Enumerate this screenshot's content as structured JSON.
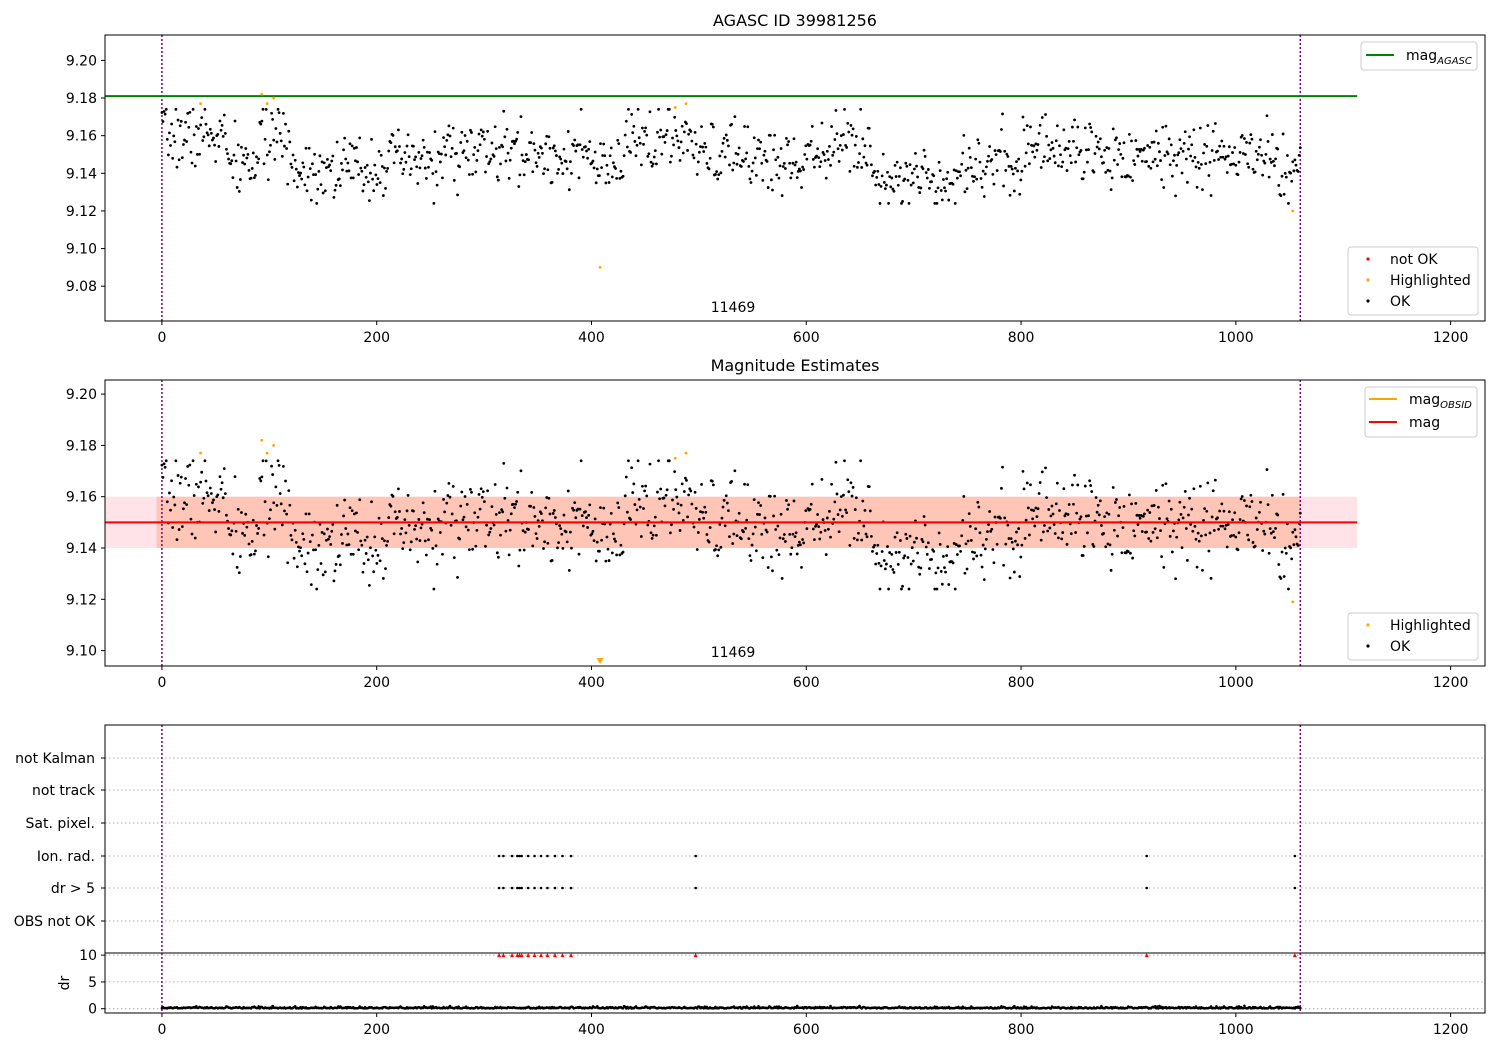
{
  "figure": {
    "width": 1500,
    "height": 1050,
    "x_ticks": [
      0,
      200,
      400,
      600,
      800,
      1000,
      1200
    ],
    "obsid_boundaries": [
      0,
      1060
    ],
    "obsid_label": "11469",
    "colors": {
      "ok": "#000000",
      "highlighted": "#ffa500",
      "not_ok": "#ff0000",
      "agasc_line": "#008000",
      "obsid_line": "#ffa500",
      "mag_line": "#ff0000",
      "band_outer": "#ffc0cb",
      "band_inner": "#ffa07a",
      "boundary": "#800080",
      "grid": "#b0b0b0"
    }
  },
  "chart_data": [
    {
      "type": "scatter",
      "title": "AGASC ID 39981256",
      "xlabel": "",
      "ylabel": "",
      "xlim": [
        -53,
        1232
      ],
      "ylim": [
        9.0615,
        9.2135
      ],
      "y_ticks": [
        "9.08",
        "9.10",
        "9.12",
        "9.14",
        "9.16",
        "9.18",
        "9.20"
      ],
      "reference_line": {
        "name": "mag_AGASC",
        "y": 9.181,
        "x_range": [
          -53,
          1113
        ]
      },
      "legend_lines": [
        {
          "label": "mag",
          "sub": "AGASC",
          "color": "#008000"
        }
      ],
      "legend_markers": [
        {
          "label": "not OK",
          "color": "#ff0000"
        },
        {
          "label": "Highlighted",
          "color": "#ffa500"
        },
        {
          "label": "OK",
          "color": "#000000"
        }
      ],
      "series": [
        {
          "name": "OK",
          "color": "#000000",
          "generated": {
            "n": 1060,
            "x_start": 0,
            "x_end": 1060,
            "seed": 7
          }
        },
        {
          "name": "Highlighted",
          "color": "#ffa500",
          "points": [
            [
              36,
              9.177
            ],
            [
              93,
              9.182
            ],
            [
              98,
              9.177
            ],
            [
              104,
              9.18
            ],
            [
              408,
              9.09
            ],
            [
              478,
              9.175
            ],
            [
              488,
              9.177
            ],
            [
              1053,
              9.12
            ]
          ]
        },
        {
          "name": "not OK",
          "color": "#ff0000",
          "points": []
        }
      ]
    },
    {
      "type": "scatter",
      "title": "Magnitude Estimates",
      "xlabel": "",
      "ylabel": "",
      "xlim": [
        -53,
        1232
      ],
      "ylim": [
        9.094,
        9.2055
      ],
      "y_ticks": [
        "9.10",
        "9.12",
        "9.14",
        "9.16",
        "9.18",
        "9.20"
      ],
      "mag": 9.15,
      "band": {
        "x_range": [
          -53,
          1113
        ],
        "outer": [
          9.14,
          9.16
        ],
        "inner": [
          9.14,
          9.16
        ]
      },
      "obsid_mag": {
        "y": 9.15,
        "x_range": [
          -5,
          1060
        ]
      },
      "legend_lines": [
        {
          "label": "mag",
          "sub": "OBSID",
          "color": "#ffa500"
        },
        {
          "label": "mag",
          "sub": "",
          "color": "#ff0000"
        }
      ],
      "legend_markers": [
        {
          "label": "Highlighted",
          "color": "#ffa500"
        },
        {
          "label": "OK",
          "color": "#000000"
        }
      ],
      "series": [
        {
          "name": "OK",
          "color": "#000000",
          "generated": {
            "n": 1060,
            "x_start": 0,
            "x_end": 1060,
            "seed": 7
          }
        },
        {
          "name": "Highlighted",
          "color": "#ffa500",
          "points": [
            [
              36,
              9.177
            ],
            [
              93,
              9.182
            ],
            [
              98,
              9.177
            ],
            [
              104,
              9.18
            ],
            [
              478,
              9.175
            ],
            [
              488,
              9.177
            ],
            [
              1053,
              9.119
            ]
          ]
        }
      ],
      "offscale_marker": {
        "x": 408,
        "color": "#ffa500"
      }
    },
    {
      "type": "scatter",
      "title": "",
      "xlabel": "",
      "ylabel": "",
      "xlim": [
        -53,
        1232
      ],
      "flag_rows": [
        "not Kalman",
        "not track",
        "Sat. pixel.",
        "Ion. rad.",
        "dr > 5",
        "OBS not OK"
      ],
      "flag_points": {
        "Ion. rad.": [
          314,
          318,
          326,
          331,
          333,
          335,
          341,
          347,
          353,
          359,
          366,
          373,
          381,
          497,
          917,
          1055
        ],
        "dr > 5": [
          314,
          318,
          326,
          331,
          333,
          335,
          341,
          347,
          353,
          359,
          366,
          373,
          381,
          497,
          917,
          1055
        ]
      }
    },
    {
      "type": "scatter",
      "title": "",
      "xlabel": "",
      "ylabel": "dr",
      "xlim": [
        -53,
        1232
      ],
      "ylim": [
        -0.8,
        10.4
      ],
      "y_ticks": [
        "0",
        "5",
        "10"
      ],
      "dr_clipped": {
        "y": 10,
        "color": "#ff0000",
        "x": [
          314,
          318,
          326,
          331,
          333,
          335,
          341,
          347,
          353,
          359,
          366,
          373,
          381,
          497,
          917,
          1055
        ]
      },
      "dr_series": {
        "color": "#000000",
        "generated": {
          "n": 1060,
          "x_start": 0,
          "x_end": 1060,
          "seed": 11
        }
      }
    }
  ]
}
